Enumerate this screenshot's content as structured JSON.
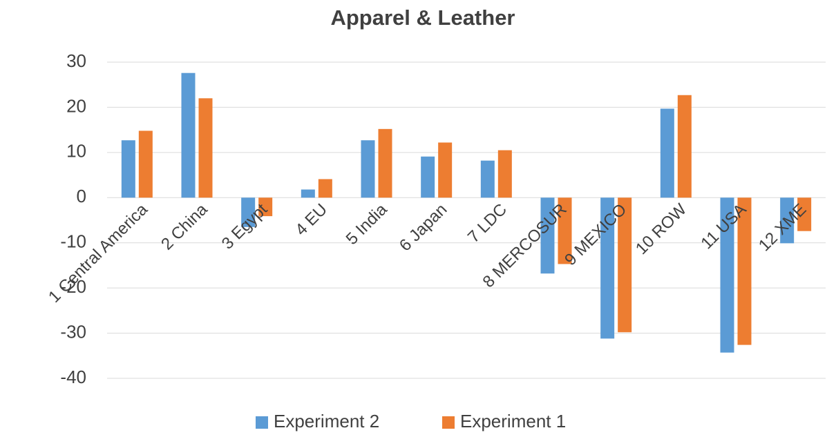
{
  "chart_data": {
    "type": "bar",
    "title": "Apparel & Leather",
    "categories": [
      "1 Central America",
      "2 China",
      "3 Egypt",
      "4 EU",
      "5 India",
      "6 Japan",
      "7 LDC",
      "8 MERCOSUR",
      "9 MEXICO",
      "10 ROW",
      "11 USA",
      "12 XME"
    ],
    "series": [
      {
        "name": "Experiment 2",
        "color": "#5b9bd5",
        "values": [
          12.7,
          27.6,
          -6.5,
          1.8,
          12.7,
          9.1,
          8.2,
          -16.8,
          -31.2,
          19.7,
          -34.3,
          -10.1
        ]
      },
      {
        "name": "Experiment 1",
        "color": "#ed7d31",
        "values": [
          14.8,
          22.0,
          -4.1,
          4.1,
          15.2,
          12.2,
          10.5,
          -14.7,
          -29.8,
          22.7,
          -32.6,
          -7.4
        ]
      }
    ],
    "ylim": [
      -40,
      30
    ],
    "yticks": [
      -40,
      -30,
      -20,
      -10,
      0,
      10,
      20,
      30
    ],
    "grid": true,
    "legend": "bottom"
  }
}
